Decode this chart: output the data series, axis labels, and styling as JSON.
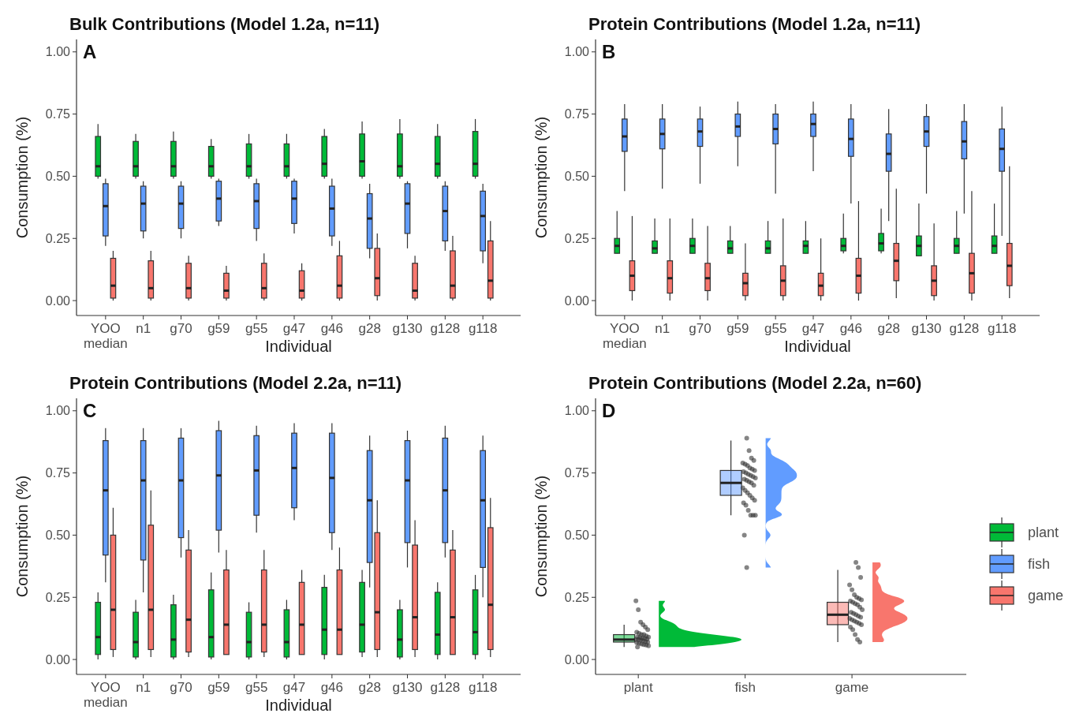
{
  "chart_data": [
    {
      "type": "box",
      "title": "Bulk Contributions (Model 1.2a, n=11)",
      "xlabel": "Individual",
      "ylabel": "Consumption (%)",
      "annotations": [
        "A"
      ],
      "categories": [
        "YOO\nmedian",
        "n1",
        "g70",
        "g59",
        "g55",
        "g47",
        "g46",
        "g28",
        "g130",
        "g128",
        "g118"
      ],
      "ylim": [
        -0.06,
        1.05
      ],
      "yticks": [
        {
          "value": 0,
          "label": "0.00"
        },
        {
          "value": 0.25,
          "label": "0.25"
        },
        {
          "value": 0.5,
          "label": "0.50"
        },
        {
          "value": 0.75,
          "label": "0.75"
        },
        {
          "value": 1,
          "label": "1.00"
        }
      ],
      "series": [
        {
          "color": "#00ba38",
          "boxes": [
            {
              "low": 0.49,
              "q1": 0.5,
              "median": 0.54,
              "q3": 0.66,
              "high": 0.71
            },
            {
              "low": 0.49,
              "q1": 0.5,
              "median": 0.54,
              "q3": 0.64,
              "high": 0.67
            },
            {
              "low": 0.49,
              "q1": 0.5,
              "median": 0.54,
              "q3": 0.64,
              "high": 0.68
            },
            {
              "low": 0.49,
              "q1": 0.5,
              "median": 0.54,
              "q3": 0.62,
              "high": 0.65
            },
            {
              "low": 0.49,
              "q1": 0.5,
              "median": 0.54,
              "q3": 0.63,
              "high": 0.67
            },
            {
              "low": 0.49,
              "q1": 0.5,
              "median": 0.54,
              "q3": 0.63,
              "high": 0.67
            },
            {
              "low": 0.49,
              "q1": 0.5,
              "median": 0.55,
              "q3": 0.66,
              "high": 0.69
            },
            {
              "low": 0.49,
              "q1": 0.5,
              "median": 0.56,
              "q3": 0.67,
              "high": 0.72
            },
            {
              "low": 0.49,
              "q1": 0.5,
              "median": 0.54,
              "q3": 0.67,
              "high": 0.73
            },
            {
              "low": 0.49,
              "q1": 0.5,
              "median": 0.55,
              "q3": 0.66,
              "high": 0.71
            },
            {
              "low": 0.49,
              "q1": 0.5,
              "median": 0.55,
              "q3": 0.68,
              "high": 0.73
            }
          ]
        },
        {
          "color": "#619cff",
          "boxes": [
            {
              "low": 0.22,
              "q1": 0.26,
              "median": 0.38,
              "q3": 0.47,
              "high": 0.49
            },
            {
              "low": 0.25,
              "q1": 0.28,
              "median": 0.39,
              "q3": 0.46,
              "high": 0.48
            },
            {
              "low": 0.25,
              "q1": 0.29,
              "median": 0.39,
              "q3": 0.46,
              "high": 0.48
            },
            {
              "low": 0.3,
              "q1": 0.32,
              "median": 0.41,
              "q3": 0.48,
              "high": 0.49
            },
            {
              "low": 0.24,
              "q1": 0.29,
              "median": 0.4,
              "q3": 0.47,
              "high": 0.49
            },
            {
              "low": 0.27,
              "q1": 0.31,
              "median": 0.41,
              "q3": 0.48,
              "high": 0.49
            },
            {
              "low": 0.22,
              "q1": 0.26,
              "median": 0.37,
              "q3": 0.46,
              "high": 0.49
            },
            {
              "low": 0.17,
              "q1": 0.21,
              "median": 0.33,
              "q3": 0.43,
              "high": 0.47
            },
            {
              "low": 0.21,
              "q1": 0.27,
              "median": 0.39,
              "q3": 0.47,
              "high": 0.48
            },
            {
              "low": 0.2,
              "q1": 0.24,
              "median": 0.36,
              "q3": 0.46,
              "high": 0.48
            },
            {
              "low": 0.15,
              "q1": 0.2,
              "median": 0.34,
              "q3": 0.44,
              "high": 0.47
            }
          ]
        },
        {
          "color": "#f8766d",
          "boxes": [
            {
              "low": 0,
              "q1": 0.01,
              "median": 0.06,
              "q3": 0.17,
              "high": 0.2
            },
            {
              "low": 0,
              "q1": 0.01,
              "median": 0.05,
              "q3": 0.16,
              "high": 0.2
            },
            {
              "low": 0,
              "q1": 0.01,
              "median": 0.05,
              "q3": 0.15,
              "high": 0.18
            },
            {
              "low": 0,
              "q1": 0.01,
              "median": 0.04,
              "q3": 0.11,
              "high": 0.14
            },
            {
              "low": 0,
              "q1": 0.01,
              "median": 0.05,
              "q3": 0.15,
              "high": 0.19
            },
            {
              "low": 0,
              "q1": 0.01,
              "median": 0.04,
              "q3": 0.12,
              "high": 0.15
            },
            {
              "low": 0,
              "q1": 0.01,
              "median": 0.06,
              "q3": 0.18,
              "high": 0.24
            },
            {
              "low": 0,
              "q1": 0.02,
              "median": 0.09,
              "q3": 0.21,
              "high": 0.27
            },
            {
              "low": 0,
              "q1": 0.01,
              "median": 0.04,
              "q3": 0.15,
              "high": 0.18
            },
            {
              "low": 0,
              "q1": 0.01,
              "median": 0.06,
              "q3": 0.2,
              "high": 0.26
            },
            {
              "low": 0,
              "q1": 0.01,
              "median": 0.08,
              "q3": 0.24,
              "high": 0.32
            }
          ]
        }
      ]
    },
    {
      "type": "box",
      "title": "Protein Contributions (Model 1.2a, n=11)",
      "xlabel": "Individual",
      "ylabel": "Consumption (%)",
      "annotations": [
        "B"
      ],
      "categories": [
        "YOO\nmedian",
        "n1",
        "g70",
        "g59",
        "g55",
        "g47",
        "g46",
        "g28",
        "g130",
        "g128",
        "g118"
      ],
      "ylim": [
        -0.06,
        1.05
      ],
      "yticks": [
        {
          "value": 0,
          "label": "0.00"
        },
        {
          "value": 0.25,
          "label": "0.25"
        },
        {
          "value": 0.5,
          "label": "0.50"
        },
        {
          "value": 0.75,
          "label": "0.75"
        },
        {
          "value": 1,
          "label": "1.00"
        }
      ],
      "series": [
        {
          "color": "#00ba38",
          "boxes": [
            {
              "low": 0.19,
              "q1": 0.19,
              "median": 0.22,
              "q3": 0.25,
              "high": 0.36
            },
            {
              "low": 0.19,
              "q1": 0.19,
              "median": 0.21,
              "q3": 0.24,
              "high": 0.33
            },
            {
              "low": 0.19,
              "q1": 0.19,
              "median": 0.22,
              "q3": 0.25,
              "high": 0.33
            },
            {
              "low": 0.19,
              "q1": 0.19,
              "median": 0.21,
              "q3": 0.24,
              "high": 0.3
            },
            {
              "low": 0.19,
              "q1": 0.19,
              "median": 0.21,
              "q3": 0.24,
              "high": 0.32
            },
            {
              "low": 0.19,
              "q1": 0.19,
              "median": 0.22,
              "q3": 0.24,
              "high": 0.32
            },
            {
              "low": 0.19,
              "q1": 0.2,
              "median": 0.22,
              "q3": 0.25,
              "high": 0.35
            },
            {
              "low": 0.19,
              "q1": 0.2,
              "median": 0.23,
              "q3": 0.27,
              "high": 0.37
            },
            {
              "low": 0.18,
              "q1": 0.18,
              "median": 0.22,
              "q3": 0.26,
              "high": 0.39
            },
            {
              "low": 0.19,
              "q1": 0.19,
              "median": 0.22,
              "q3": 0.25,
              "high": 0.36
            },
            {
              "low": 0.19,
              "q1": 0.19,
              "median": 0.22,
              "q3": 0.26,
              "high": 0.39
            }
          ]
        },
        {
          "color": "#619cff",
          "boxes": [
            {
              "low": 0.44,
              "q1": 0.6,
              "median": 0.66,
              "q3": 0.73,
              "high": 0.79
            },
            {
              "low": 0.45,
              "q1": 0.61,
              "median": 0.67,
              "q3": 0.73,
              "high": 0.79
            },
            {
              "low": 0.47,
              "q1": 0.62,
              "median": 0.68,
              "q3": 0.73,
              "high": 0.78
            },
            {
              "low": 0.54,
              "q1": 0.66,
              "median": 0.7,
              "q3": 0.75,
              "high": 0.8
            },
            {
              "low": 0.43,
              "q1": 0.63,
              "median": 0.69,
              "q3": 0.75,
              "high": 0.79
            },
            {
              "low": 0.52,
              "q1": 0.66,
              "median": 0.71,
              "q3": 0.75,
              "high": 0.8
            },
            {
              "low": 0.39,
              "q1": 0.58,
              "median": 0.65,
              "q3": 0.73,
              "high": 0.79
            },
            {
              "low": 0.32,
              "q1": 0.52,
              "median": 0.59,
              "q3": 0.67,
              "high": 0.77
            },
            {
              "low": 0.43,
              "q1": 0.62,
              "median": 0.68,
              "q3": 0.74,
              "high": 0.79
            },
            {
              "low": 0.35,
              "q1": 0.57,
              "median": 0.64,
              "q3": 0.72,
              "high": 0.79
            },
            {
              "low": 0.26,
              "q1": 0.52,
              "median": 0.61,
              "q3": 0.69,
              "high": 0.78
            }
          ]
        },
        {
          "color": "#f8766d",
          "boxes": [
            {
              "low": 0,
              "q1": 0.04,
              "median": 0.1,
              "q3": 0.16,
              "high": 0.34
            },
            {
              "low": 0,
              "q1": 0.03,
              "median": 0.09,
              "q3": 0.16,
              "high": 0.33
            },
            {
              "low": 0,
              "q1": 0.04,
              "median": 0.09,
              "q3": 0.15,
              "high": 0.3
            },
            {
              "low": 0,
              "q1": 0.02,
              "median": 0.07,
              "q3": 0.11,
              "high": 0.23
            },
            {
              "low": 0,
              "q1": 0.02,
              "median": 0.08,
              "q3": 0.14,
              "high": 0.33
            },
            {
              "low": 0,
              "q1": 0.02,
              "median": 0.06,
              "q3": 0.11,
              "high": 0.25
            },
            {
              "low": 0,
              "q1": 0.03,
              "median": 0.1,
              "q3": 0.17,
              "high": 0.4
            },
            {
              "low": 0.01,
              "q1": 0.08,
              "median": 0.16,
              "q3": 0.23,
              "high": 0.45
            },
            {
              "low": 0,
              "q1": 0.02,
              "median": 0.08,
              "q3": 0.14,
              "high": 0.31
            },
            {
              "low": 0,
              "q1": 0.03,
              "median": 0.11,
              "q3": 0.19,
              "high": 0.44
            },
            {
              "low": 0.01,
              "q1": 0.06,
              "median": 0.14,
              "q3": 0.23,
              "high": 0.54
            }
          ]
        }
      ]
    },
    {
      "type": "box",
      "title": "Protein Contributions (Model 2.2a, n=11)",
      "xlabel": "Individual",
      "ylabel": "Consumption (%)",
      "annotations": [
        "C"
      ],
      "categories": [
        "YOO\nmedian",
        "n1",
        "g70",
        "g59",
        "g55",
        "g47",
        "g46",
        "g28",
        "g130",
        "g128",
        "g118"
      ],
      "ylim": [
        -0.06,
        1.05
      ],
      "yticks": [
        {
          "value": 0,
          "label": "0.00"
        },
        {
          "value": 0.25,
          "label": "0.25"
        },
        {
          "value": 0.5,
          "label": "0.50"
        },
        {
          "value": 0.75,
          "label": "0.75"
        },
        {
          "value": 1,
          "label": "1.00"
        }
      ],
      "series": [
        {
          "color": "#00ba38",
          "boxes": [
            {
              "low": 0,
              "q1": 0.02,
              "median": 0.09,
              "q3": 0.23,
              "high": 0.27
            },
            {
              "low": 0,
              "q1": 0.01,
              "median": 0.07,
              "q3": 0.19,
              "high": 0.24
            },
            {
              "low": 0,
              "q1": 0.01,
              "median": 0.08,
              "q3": 0.22,
              "high": 0.26
            },
            {
              "low": 0,
              "q1": 0.01,
              "median": 0.09,
              "q3": 0.28,
              "high": 0.35
            },
            {
              "low": 0,
              "q1": 0.01,
              "median": 0.07,
              "q3": 0.19,
              "high": 0.23
            },
            {
              "low": 0,
              "q1": 0.01,
              "median": 0.07,
              "q3": 0.2,
              "high": 0.24
            },
            {
              "low": 0,
              "q1": 0.02,
              "median": 0.12,
              "q3": 0.29,
              "high": 0.34
            },
            {
              "low": 0.01,
              "q1": 0.03,
              "median": 0.14,
              "q3": 0.31,
              "high": 0.36
            },
            {
              "low": 0,
              "q1": 0.01,
              "median": 0.08,
              "q3": 0.2,
              "high": 0.24
            },
            {
              "low": 0,
              "q1": 0.02,
              "median": 0.1,
              "q3": 0.27,
              "high": 0.31
            },
            {
              "low": 0,
              "q1": 0.02,
              "median": 0.11,
              "q3": 0.28,
              "high": 0.34
            }
          ]
        },
        {
          "color": "#619cff",
          "boxes": [
            {
              "low": 0.31,
              "q1": 0.42,
              "median": 0.68,
              "q3": 0.88,
              "high": 0.93
            },
            {
              "low": 0.27,
              "q1": 0.4,
              "median": 0.72,
              "q3": 0.88,
              "high": 0.93
            },
            {
              "low": 0.41,
              "q1": 0.49,
              "median": 0.72,
              "q3": 0.89,
              "high": 0.93
            },
            {
              "low": 0.43,
              "q1": 0.52,
              "median": 0.74,
              "q3": 0.92,
              "high": 0.96
            },
            {
              "low": 0.51,
              "q1": 0.58,
              "median": 0.76,
              "q3": 0.9,
              "high": 0.94
            },
            {
              "low": 0.56,
              "q1": 0.61,
              "median": 0.77,
              "q3": 0.91,
              "high": 0.95
            },
            {
              "low": 0.44,
              "q1": 0.51,
              "median": 0.73,
              "q3": 0.91,
              "high": 0.95
            },
            {
              "low": 0.29,
              "q1": 0.39,
              "median": 0.64,
              "q3": 0.84,
              "high": 0.9
            },
            {
              "low": 0.37,
              "q1": 0.47,
              "median": 0.72,
              "q3": 0.88,
              "high": 0.92
            },
            {
              "low": 0.41,
              "q1": 0.47,
              "median": 0.68,
              "q3": 0.89,
              "high": 0.94
            },
            {
              "low": 0.25,
              "q1": 0.37,
              "median": 0.64,
              "q3": 0.84,
              "high": 0.9
            }
          ]
        },
        {
          "color": "#f8766d",
          "boxes": [
            {
              "low": 0.01,
              "q1": 0.04,
              "median": 0.2,
              "q3": 0.5,
              "high": 0.61
            },
            {
              "low": 0.01,
              "q1": 0.04,
              "median": 0.2,
              "q3": 0.54,
              "high": 0.68
            },
            {
              "low": 0.01,
              "q1": 0.03,
              "median": 0.16,
              "q3": 0.44,
              "high": 0.52
            },
            {
              "low": 0.02,
              "q1": 0.02,
              "median": 0.14,
              "q3": 0.36,
              "high": 0.44
            },
            {
              "low": 0.01,
              "q1": 0.03,
              "median": 0.14,
              "q3": 0.36,
              "high": 0.44
            },
            {
              "low": 0.02,
              "q1": 0.02,
              "median": 0.14,
              "q3": 0.31,
              "high": 0.36
            },
            {
              "low": 0.02,
              "q1": 0.02,
              "median": 0.12,
              "q3": 0.36,
              "high": 0.45
            },
            {
              "low": 0.01,
              "q1": 0.04,
              "median": 0.19,
              "q3": 0.51,
              "high": 0.64
            },
            {
              "low": 0.01,
              "q1": 0.04,
              "median": 0.17,
              "q3": 0.46,
              "high": 0.56
            },
            {
              "low": 0.02,
              "q1": 0.02,
              "median": 0.17,
              "q3": 0.44,
              "high": 0.52
            },
            {
              "low": 0.01,
              "q1": 0.04,
              "median": 0.22,
              "q3": 0.53,
              "high": 0.65
            }
          ]
        }
      ]
    },
    {
      "type": "box",
      "title": "Protein Contributions (Model 2.2a, n=60)",
      "ylabel": "Consumption (%)",
      "annotations": [
        "D"
      ],
      "categories": [
        "plant",
        "fish",
        "game"
      ],
      "legend": "right",
      "ylim": [
        -0.06,
        1.05
      ],
      "yticks": [
        {
          "value": 0,
          "label": "0.00"
        },
        {
          "value": 0.25,
          "label": "0.25"
        },
        {
          "value": 0.5,
          "label": "0.50"
        },
        {
          "value": 0.75,
          "label": "0.75"
        },
        {
          "value": 1,
          "label": "1.00"
        }
      ],
      "series": [
        {
          "name": "plant",
          "color": "#00ba38",
          "boxes": [
            {
              "low": 0.05,
              "q1": 0.07,
              "median": 0.08,
              "q3": 0.1,
              "high": 0.14
            },
            null,
            null
          ]
        },
        {
          "name": "fish",
          "color": "#619cff",
          "boxes": [
            null,
            {
              "low": 0.58,
              "q1": 0.66,
              "median": 0.71,
              "q3": 0.76,
              "high": 0.88
            },
            null
          ]
        },
        {
          "name": "game",
          "color": "#f8766d",
          "boxes": [
            null,
            null,
            {
              "low": 0.07,
              "q1": 0.14,
              "median": 0.18,
              "q3": 0.23,
              "high": 0.36
            }
          ]
        },
        {
          "type": "scatter",
          "color": "#333333",
          "x": [
            "plant",
            "plant",
            "plant",
            "plant",
            "plant",
            "plant",
            "plant",
            "plant",
            "plant",
            "plant",
            "plant",
            "plant",
            "plant",
            "plant",
            "plant",
            "plant",
            "plant",
            "plant",
            "plant",
            "plant",
            "plant",
            "plant",
            "plant",
            "plant",
            "plant",
            "plant",
            "plant",
            "plant",
            "plant",
            "plant",
            "fish",
            "fish",
            "fish",
            "fish",
            "fish",
            "fish",
            "fish",
            "fish",
            "fish",
            "fish",
            "fish",
            "fish",
            "fish",
            "fish",
            "fish",
            "fish",
            "fish",
            "fish",
            "fish",
            "fish",
            "fish",
            "fish",
            "fish",
            "fish",
            "fish",
            "fish",
            "fish",
            "fish",
            "fish",
            "fish",
            "fish",
            "fish",
            "fish",
            "fish",
            "fish",
            "game",
            "game",
            "game",
            "game",
            "game",
            "game",
            "game",
            "game",
            "game",
            "game",
            "game",
            "game",
            "game",
            "game",
            "game",
            "game",
            "game",
            "game",
            "game",
            "game",
            "game",
            "game",
            "game",
            "game",
            "game",
            "game",
            "game",
            "game",
            "game",
            "game",
            "game"
          ],
          "values": [
            0.236,
            0.2,
            0.15,
            0.14,
            0.13,
            0.12,
            0.11,
            0.105,
            0.1,
            0.1,
            0.095,
            0.09,
            0.09,
            0.088,
            0.085,
            0.085,
            0.082,
            0.08,
            0.08,
            0.078,
            0.075,
            0.072,
            0.07,
            0.068,
            0.065,
            0.062,
            0.06,
            0.058,
            0.055,
            0.05,
            0.89,
            0.84,
            0.81,
            0.8,
            0.79,
            0.785,
            0.78,
            0.77,
            0.765,
            0.76,
            0.755,
            0.75,
            0.745,
            0.74,
            0.735,
            0.73,
            0.725,
            0.72,
            0.715,
            0.71,
            0.7,
            0.69,
            0.68,
            0.67,
            0.66,
            0.65,
            0.64,
            0.63,
            0.62,
            0.6,
            0.58,
            0.58,
            0.58,
            0.5,
            0.37,
            0.39,
            0.37,
            0.33,
            0.3,
            0.28,
            0.26,
            0.25,
            0.245,
            0.24,
            0.235,
            0.23,
            0.225,
            0.22,
            0.21,
            0.2,
            0.19,
            0.185,
            0.18,
            0.175,
            0.17,
            0.165,
            0.16,
            0.155,
            0.15,
            0.145,
            0.14,
            0.13,
            0.12,
            0.1,
            0.08,
            0.07
          ]
        }
      ]
    }
  ]
}
